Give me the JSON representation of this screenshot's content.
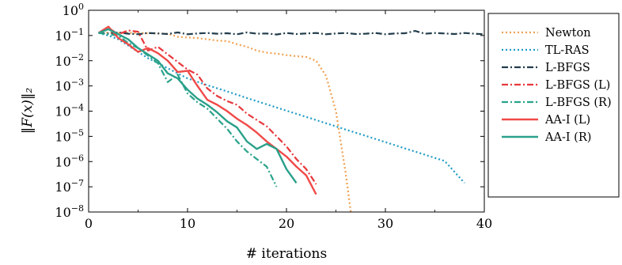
{
  "chart_data": {
    "type": "line",
    "title": "",
    "xlabel": "# iterations",
    "ylabel": "‖F(x)‖₂",
    "xlim": [
      0,
      40
    ],
    "ylim_log10": [
      -8,
      0
    ],
    "yscale": "log",
    "grid": false,
    "legend_position": "right-outside",
    "xticks": [
      0,
      10,
      20,
      30,
      40
    ],
    "xtick_labels": [
      "0",
      "10",
      "20",
      "30",
      "40"
    ],
    "yticks_log10": [
      0,
      -1,
      -2,
      -3,
      -4,
      -5,
      -6,
      -7,
      -8
    ],
    "ytick_bases": [
      "10",
      "10",
      "10",
      "10",
      "10",
      "10",
      "10",
      "10",
      "10"
    ],
    "ytick_exponents": [
      "0",
      "−1",
      "−2",
      "−3",
      "−4",
      "−5",
      "−6",
      "−7",
      "−8"
    ],
    "series": [
      {
        "name": "Newton",
        "color": "#f0a050",
        "dash": "dotted",
        "x": [
          1,
          2,
          3,
          4,
          5,
          6,
          7,
          8,
          9,
          10,
          11,
          12,
          13,
          14,
          15,
          16,
          17,
          18,
          19,
          20,
          21,
          22,
          23,
          24,
          25,
          26,
          26.5
        ],
        "log10_y": [
          -0.88,
          -0.89,
          -0.89,
          -0.89,
          -0.9,
          -0.91,
          -0.92,
          -0.93,
          -1.05,
          -1.08,
          -1.1,
          -1.15,
          -1.2,
          -1.22,
          -1.35,
          -1.45,
          -1.6,
          -1.68,
          -1.72,
          -1.78,
          -1.82,
          -1.85,
          -2.0,
          -2.6,
          -4.0,
          -6.5,
          -8.0
        ]
      },
      {
        "name": "TL-RAS",
        "color": "#1f9bc4",
        "dash": "dotted",
        "x": [
          1,
          2,
          3,
          4,
          5,
          6,
          7,
          8,
          9,
          10,
          12,
          14,
          16,
          18,
          20,
          22,
          24,
          26,
          28,
          30,
          32,
          34,
          36,
          38
        ],
        "log10_y": [
          -0.9,
          -1.0,
          -1.15,
          -1.4,
          -1.65,
          -1.9,
          -2.1,
          -2.3,
          -2.5,
          -2.7,
          -2.97,
          -3.22,
          -3.48,
          -3.73,
          -3.98,
          -4.23,
          -4.48,
          -4.73,
          -4.98,
          -5.23,
          -5.48,
          -5.73,
          -5.98,
          -6.85
        ]
      },
      {
        "name": "L-BFGS",
        "color": "#233d4d",
        "dash": "dashdot",
        "x": [
          1,
          2,
          3,
          4,
          5,
          6,
          7,
          8,
          9,
          10,
          11,
          12,
          13,
          14,
          15,
          16,
          17,
          18,
          19,
          20,
          21,
          22,
          23,
          24,
          25,
          26,
          27,
          28,
          29,
          30,
          31,
          32,
          33,
          34,
          35,
          36,
          37,
          38,
          39,
          40
        ],
        "log10_y": [
          -0.9,
          -0.92,
          -0.88,
          -0.93,
          -0.95,
          -0.9,
          -0.92,
          -0.94,
          -0.88,
          -0.95,
          -0.92,
          -0.9,
          -0.93,
          -0.91,
          -0.95,
          -0.88,
          -0.93,
          -0.92,
          -0.96,
          -0.9,
          -0.94,
          -0.92,
          -0.9,
          -0.95,
          -0.92,
          -0.9,
          -0.94,
          -0.93,
          -0.9,
          -0.95,
          -0.92,
          -0.91,
          -0.82,
          -0.93,
          -0.9,
          -0.92,
          -0.94,
          -0.9,
          -0.93,
          -0.95
        ]
      },
      {
        "name": "L-BFGS (L)",
        "color": "#e8383c",
        "dash": "dashdot",
        "x": [
          1,
          2,
          3,
          4,
          5,
          6,
          7,
          8,
          9,
          10,
          11,
          12,
          13,
          14,
          15,
          16,
          17,
          18,
          19,
          20,
          21,
          22,
          23
        ],
        "log10_y": [
          -0.9,
          -0.7,
          -0.95,
          -0.8,
          -0.85,
          -1.6,
          -1.45,
          -1.75,
          -2.05,
          -2.35,
          -2.55,
          -3.1,
          -3.4,
          -3.6,
          -3.75,
          -4.1,
          -4.35,
          -4.6,
          -5.0,
          -5.4,
          -5.9,
          -6.3,
          -6.9
        ]
      },
      {
        "name": "L-BFGS (R)",
        "color": "#2ba38b",
        "dash": "dashdot",
        "x": [
          1,
          2,
          3,
          4,
          5,
          6,
          7,
          8,
          9,
          10,
          11,
          12,
          13,
          14,
          15,
          16,
          17,
          18,
          19
        ],
        "log10_y": [
          -0.9,
          -0.95,
          -1.0,
          -1.3,
          -1.5,
          -1.8,
          -2.1,
          -2.85,
          -2.55,
          -3.3,
          -3.65,
          -3.9,
          -4.3,
          -4.7,
          -5.2,
          -5.6,
          -5.9,
          -6.2,
          -7.0
        ]
      },
      {
        "name": "AA-I (L)",
        "color": "#f04a48",
        "dash": "solid",
        "x": [
          1,
          2,
          3,
          4,
          5,
          6,
          7,
          8,
          9,
          10,
          11,
          12,
          13,
          14,
          15,
          16,
          17,
          18,
          19,
          20,
          21,
          22,
          23
        ],
        "log10_y": [
          -0.9,
          -0.65,
          -1.1,
          -1.35,
          -1.65,
          -1.5,
          -1.7,
          -2.0,
          -2.45,
          -2.4,
          -3.0,
          -3.55,
          -3.75,
          -4.0,
          -4.3,
          -4.55,
          -4.85,
          -5.2,
          -5.5,
          -5.8,
          -6.2,
          -6.55,
          -7.3
        ]
      },
      {
        "name": "AA-I (R)",
        "color": "#2aa08a",
        "dash": "solid",
        "x": [
          1,
          2,
          3,
          4,
          5,
          6,
          7,
          8,
          9,
          10,
          11,
          12,
          13,
          14,
          15,
          16,
          17,
          18,
          19,
          20,
          21
        ],
        "log10_y": [
          -0.9,
          -0.75,
          -0.95,
          -1.15,
          -1.5,
          -1.75,
          -2.0,
          -2.5,
          -2.7,
          -3.15,
          -3.5,
          -3.75,
          -4.05,
          -4.4,
          -4.65,
          -5.2,
          -5.5,
          -5.3,
          -5.5,
          -6.3,
          -6.85
        ]
      }
    ]
  }
}
